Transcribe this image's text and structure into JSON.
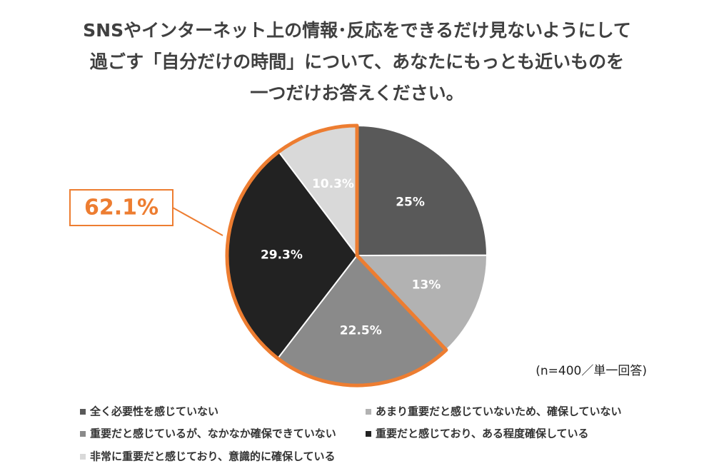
{
  "chart_data": {
    "type": "pie",
    "title": [
      "SNSやインターネット上の情報･反応をできるだけ見ないようにして",
      "過ごす「自分だけの時間」について、あなたにもっとも近いものを",
      "一つだけお答えください。"
    ],
    "categories": [
      "全く必要性を感じていない",
      "あまり重要だと感じていないため、確保していない",
      "重要だと感じているが、なかなか確保できていない",
      "重要だと感じており、ある程度確保している",
      "非常に重要だと感じており、意識的に確保している"
    ],
    "values": [
      25,
      13,
      22.5,
      29.3,
      10.3
    ],
    "value_labels": [
      "25%",
      "13%",
      "22.5%",
      "29.3%",
      "10.3%"
    ],
    "colors": [
      "#595959",
      "#b2b2b2",
      "#8a8a8a",
      "#222222",
      "#d9d9d9"
    ],
    "annotation": {
      "text": "62.1%",
      "slices": [
        2,
        3,
        4
      ],
      "color": "#ed7d31"
    },
    "note": "(n=400／単一回答)",
    "legend": "bottom"
  }
}
